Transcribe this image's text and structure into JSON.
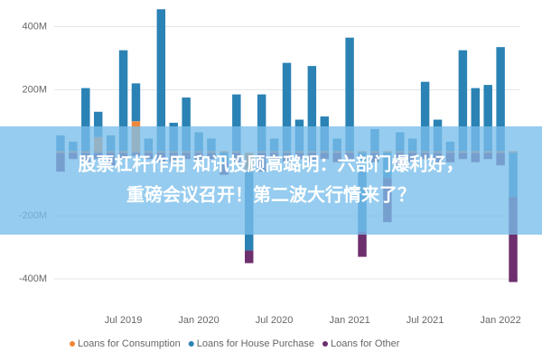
{
  "chart_data": {
    "type": "stacked-bar",
    "categories": [
      null,
      null,
      null,
      null,
      null,
      "Jul 2019",
      null,
      null,
      null,
      null,
      null,
      "Jan 2020",
      null,
      null,
      null,
      null,
      null,
      "Jul 2020",
      null,
      null,
      null,
      null,
      null,
      "Jan 2021",
      null,
      null,
      null,
      null,
      null,
      "Jul 2021",
      null,
      null,
      null,
      null,
      null,
      "Jan 2022",
      null
    ],
    "series": [
      {
        "name": "Loans for Consumption",
        "color": "#f0883a",
        "values": [
          5,
          5,
          5,
          50,
          5,
          5,
          100,
          5,
          5,
          5,
          5,
          5,
          5,
          5,
          5,
          -60,
          5,
          5,
          5,
          5,
          5,
          5,
          5,
          5,
          5,
          5,
          5,
          5,
          5,
          5,
          5,
          5,
          5,
          5,
          5,
          5,
          5
        ]
      },
      {
        "name": "Loans for House Purchase",
        "color": "#2b82b4",
        "values": [
          50,
          30,
          200,
          80,
          50,
          320,
          120,
          40,
          450,
          90,
          170,
          60,
          40,
          -30,
          180,
          -250,
          180,
          40,
          280,
          100,
          270,
          110,
          40,
          360,
          -250,
          70,
          -80,
          60,
          40,
          220,
          100,
          30,
          320,
          200,
          210,
          330,
          -140
        ]
      },
      {
        "name": "Loans for Other",
        "color": "#6e2f6e",
        "values": [
          -60,
          -20,
          -30,
          -20,
          -40,
          -20,
          -10,
          -20,
          -30,
          -30,
          -20,
          -30,
          -20,
          -40,
          -30,
          -40,
          -60,
          -20,
          -30,
          -20,
          -30,
          -20,
          -30,
          -20,
          -80,
          -30,
          -140,
          -40,
          -30,
          -20,
          -30,
          -30,
          -20,
          -30,
          -20,
          -40,
          -270
        ]
      }
    ],
    "ylim": [
      -460,
      470
    ],
    "yticks": [
      {
        "value": 400,
        "label": "400M"
      },
      {
        "value": 200,
        "label": "200M"
      },
      {
        "value": -200,
        "label": "-200M"
      },
      {
        "value": -400,
        "label": "-400M"
      }
    ],
    "grid": true,
    "legend": "bottom"
  },
  "banner": {
    "lines": [
      "股票杠杆作用 和讯投顾高璐明：六部门爆利好，",
      "重磅会议召开！第二波大行情来了？"
    ]
  }
}
